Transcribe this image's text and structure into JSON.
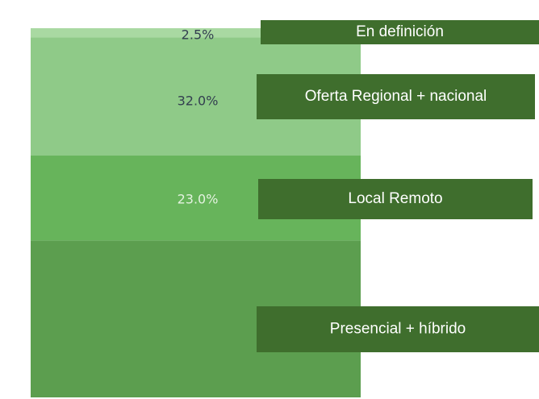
{
  "chart_data": {
    "type": "stacked-bar",
    "series": [
      {
        "name": "Presencial + híbrido",
        "color": "#5c9e4f",
        "values": [
          42.5
        ],
        "value_labels": [
          null
        ]
      },
      {
        "name": "Local Remoto",
        "color": "#67b45b",
        "values": [
          23.0
        ],
        "value_labels": [
          "23.0%"
        ]
      },
      {
        "name": "Oferta Regional + nacional",
        "color": "#8fca88",
        "values": [
          32.0
        ],
        "value_labels": [
          "32.0%"
        ]
      },
      {
        "name": "En definición",
        "color": "#a9d9a2",
        "values": [
          2.5
        ],
        "value_labels": [
          "2.5%"
        ]
      }
    ],
    "ylim": [
      0,
      100
    ]
  }
}
